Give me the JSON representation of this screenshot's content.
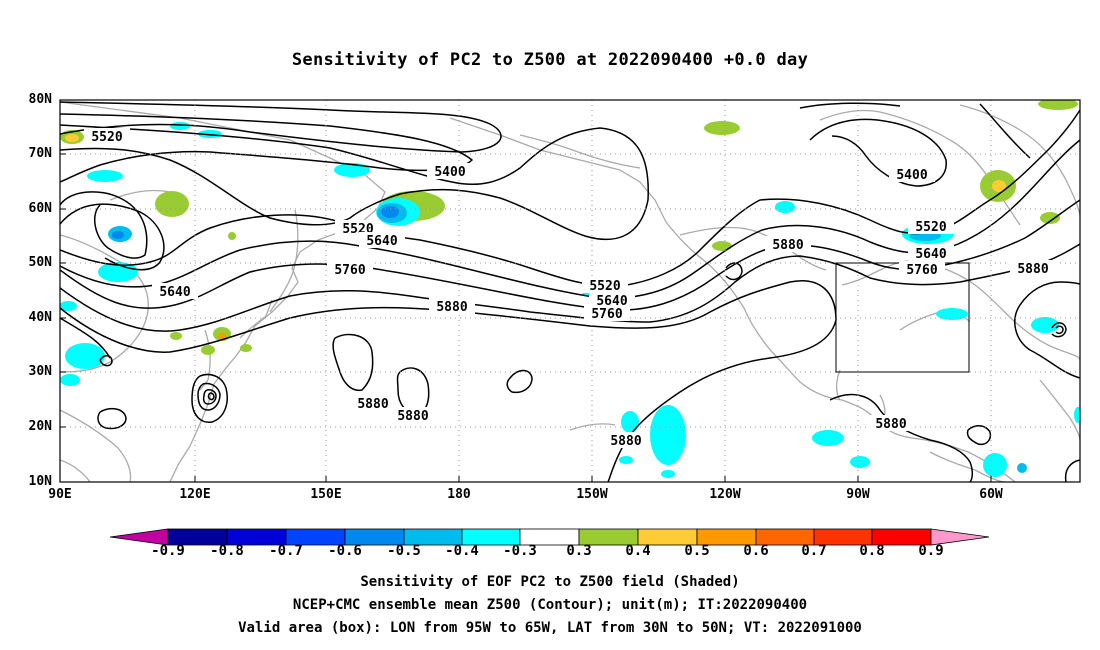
{
  "title": "Sensitivity of PC2 to Z500 at 2022090400 +0.0 day",
  "lat_labels": [
    "80N",
    "70N",
    "60N",
    "50N",
    "40N",
    "30N",
    "20N",
    "10N"
  ],
  "lon_labels": [
    "90E",
    "120E",
    "150E",
    "180",
    "150W",
    "120W",
    "90W",
    "60W"
  ],
  "contour_labels": [
    "5520",
    "5400",
    "5520",
    "5640",
    "5760",
    "5640",
    "5880",
    "5880",
    "5880",
    "5880",
    "5520",
    "5640",
    "5760",
    "5880",
    "5400",
    "5520",
    "5640",
    "5760",
    "5880",
    "5880"
  ],
  "colorbar": {
    "labels": [
      "-0.9",
      "-0.8",
      "-0.7",
      "-0.6",
      "-0.5",
      "-0.4",
      "-0.3",
      "0.3",
      "0.4",
      "0.5",
      "0.6",
      "0.7",
      "0.8",
      "0.9"
    ],
    "colors": [
      "#c000a0",
      "#00009a",
      "#0000d8",
      "#0044ff",
      "#0088ee",
      "#00bbee",
      "#00ffff",
      "#ffffff",
      "#99cc33",
      "#ffcc33",
      "#ff9900",
      "#ff6600",
      "#ff3300",
      "#ff0000",
      "#ff99cc"
    ]
  },
  "colors": {
    "positive_green": "#99cc33",
    "positive_yellow": "#ffcc33",
    "positive_orange": "#ff9900",
    "negative_cyan": "#00ffff",
    "negative_sky": "#00bbee",
    "negative_blue": "#0088ee",
    "coastline": "#aaaaaa"
  },
  "captions": [
    "Sensitivity of EOF PC2 to Z500 field (Shaded)",
    "NCEP+CMC ensemble mean Z500 (Contour); unit(m); IT:2022090400",
    "Valid area (box): LON from 95W to 65W, LAT from 30N to 50N; VT: 2022091000"
  ]
}
